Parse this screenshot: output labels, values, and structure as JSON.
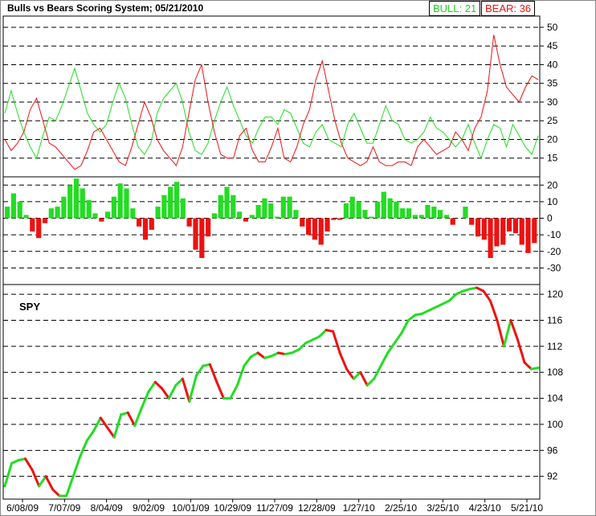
{
  "title": "Bulls vs Bears Scoring System;  05/21/2010",
  "legend": {
    "bull": "BULL: 21",
    "bear": "BEAR: 36",
    "bull_color": "#22dd22",
    "bear_color": "#ee1111"
  },
  "spy_label": "SPY",
  "chart_data": [
    {
      "type": "line",
      "panel": "scores",
      "ylim": [
        10,
        53
      ],
      "yticks": [
        "50",
        "45",
        "40",
        "35",
        "30",
        "25",
        "20",
        "15"
      ],
      "grid": "dashed horizontal",
      "series": [
        {
          "name": "BULL",
          "color": "#22dd22",
          "values": [
            27,
            33,
            27,
            22,
            18,
            15,
            21,
            26,
            25,
            29,
            34,
            39,
            33,
            27,
            24,
            22,
            24,
            30,
            35,
            31,
            24,
            18,
            16,
            19,
            27,
            31,
            33,
            35,
            30,
            22,
            17,
            16,
            19,
            25,
            30,
            34,
            29,
            25,
            21,
            19,
            23,
            26,
            26,
            24,
            28,
            27,
            23,
            19,
            18,
            22,
            24,
            20,
            19,
            18,
            24,
            27,
            23,
            19,
            19,
            24,
            29,
            25,
            24,
            20,
            19,
            20,
            22,
            26,
            23,
            22,
            20,
            18,
            20,
            24,
            19,
            15,
            20,
            24,
            23,
            18,
            24,
            21,
            18,
            16,
            21
          ]
        },
        {
          "name": "BEAR",
          "color": "#ee1111",
          "values": [
            20,
            17,
            19,
            22,
            28,
            31,
            25,
            19,
            18,
            16,
            14,
            12,
            13,
            17,
            22,
            23,
            20,
            17,
            14,
            13,
            18,
            24,
            30,
            26,
            20,
            17,
            15,
            13,
            18,
            27,
            36,
            40,
            30,
            22,
            16,
            15,
            15,
            21,
            23,
            17,
            14,
            14,
            18,
            23,
            15,
            14,
            18,
            24,
            28,
            36,
            41,
            33,
            25,
            19,
            15,
            14,
            13,
            14,
            18,
            14,
            13,
            13,
            14,
            14,
            13,
            18,
            20,
            18,
            16,
            17,
            18,
            22,
            20,
            17,
            23,
            26,
            33,
            48,
            40,
            34,
            32,
            30,
            34,
            37,
            36
          ]
        }
      ]
    },
    {
      "type": "bar",
      "panel": "difference",
      "ylim": [
        -40,
        25
      ],
      "yticks": [
        "20",
        "10",
        "0",
        "-10",
        "-20",
        "-30"
      ],
      "colors": {
        "positive": "#22dd22",
        "negative": "#ee1111"
      },
      "values": [
        7,
        15,
        10,
        2,
        -8,
        -12,
        -3,
        6,
        7,
        13,
        20,
        24,
        18,
        11,
        3,
        -2,
        4,
        13,
        21,
        18,
        6,
        -5,
        -13,
        -7,
        7,
        14,
        19,
        22,
        12,
        -5,
        -19,
        -24,
        -11,
        3,
        14,
        19,
        14,
        4,
        -2,
        2,
        8,
        12,
        9,
        1,
        13,
        13,
        5,
        -5,
        -10,
        -13,
        -16,
        -8,
        -1,
        -1,
        9,
        13,
        10,
        5,
        1,
        10,
        16,
        12,
        10,
        6,
        6,
        2,
        2,
        8,
        7,
        5,
        2,
        -4,
        0,
        7,
        -4,
        -11,
        -13,
        -24,
        -17,
        -16,
        -8,
        -9,
        -16,
        -21,
        -15
      ]
    },
    {
      "type": "line",
      "panel": "price",
      "series_name": "SPY",
      "ylim": [
        88.5,
        121.5
      ],
      "yticks": [
        "120",
        "116",
        "112",
        "108",
        "104",
        "100",
        "96",
        "92"
      ],
      "xlabels": [
        "6/08/09",
        "7/07/09",
        "8/04/09",
        "9/02/09",
        "10/01/09",
        "10/29/09",
        "11/27/09",
        "12/28/09",
        "1/27/10",
        "2/25/10",
        "3/25/10",
        "4/23/10",
        "5/21/10"
      ],
      "up_color": "#22dd22",
      "down_color": "#ee1111",
      "values": [
        90.5,
        94,
        94.5,
        94.7,
        93,
        90.5,
        92,
        90,
        89,
        89,
        92,
        95,
        97.5,
        99,
        101,
        99.5,
        98,
        101.5,
        101.8,
        99.8,
        102.5,
        105,
        106.5,
        105.5,
        104,
        106,
        107,
        103.5,
        107.5,
        109,
        109.2,
        106.5,
        104,
        104,
        106,
        109,
        110.4,
        111,
        110.2,
        110.5,
        111,
        110.8,
        111,
        111.5,
        112.5,
        113,
        113.5,
        114.5,
        114.3,
        111,
        108.5,
        107,
        108,
        106,
        107,
        109,
        111,
        112.5,
        114,
        116,
        116.8,
        117,
        117.5,
        118,
        118.5,
        119,
        120,
        120.5,
        120.8,
        121,
        120.5,
        119,
        116,
        112,
        116,
        113,
        109.5,
        108.5,
        108.7
      ]
    }
  ]
}
